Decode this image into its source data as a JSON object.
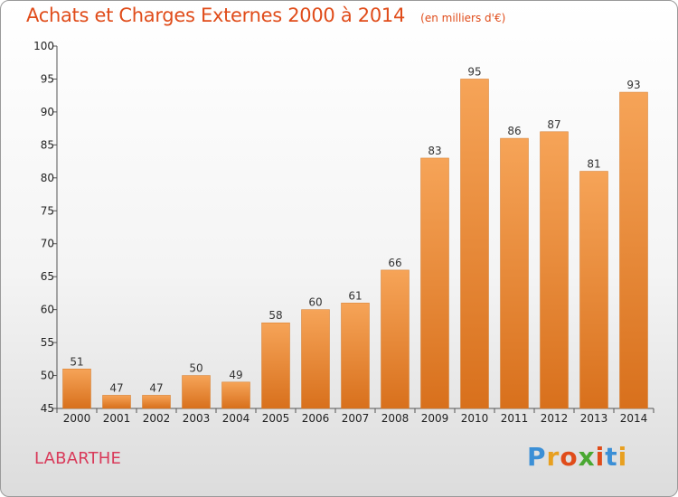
{
  "chart_data": {
    "type": "bar",
    "title": "Achats et Charges Externes 2000 à 2014",
    "subtitle": "(en milliers d'€)",
    "categories": [
      "2000",
      "2001",
      "2002",
      "2003",
      "2004",
      "2005",
      "2006",
      "2007",
      "2008",
      "2009",
      "2010",
      "2011",
      "2012",
      "2013",
      "2014"
    ],
    "values": [
      51,
      47,
      47,
      50,
      49,
      58,
      60,
      61,
      66,
      83,
      95,
      86,
      87,
      81,
      93
    ],
    "ylim": [
      45,
      100
    ],
    "yticks": [
      45,
      50,
      55,
      60,
      65,
      70,
      75,
      80,
      85,
      90,
      95,
      100
    ],
    "grid": false,
    "bar_color": "#f28a2e"
  },
  "location": "LABARTHE",
  "logo": {
    "text": "Proxiti",
    "letter_colors": [
      "#3b8fd6",
      "#e8a020",
      "#e04c1a",
      "#4aa832",
      "#e04c1a",
      "#3b8fd6",
      "#e8a020"
    ]
  }
}
